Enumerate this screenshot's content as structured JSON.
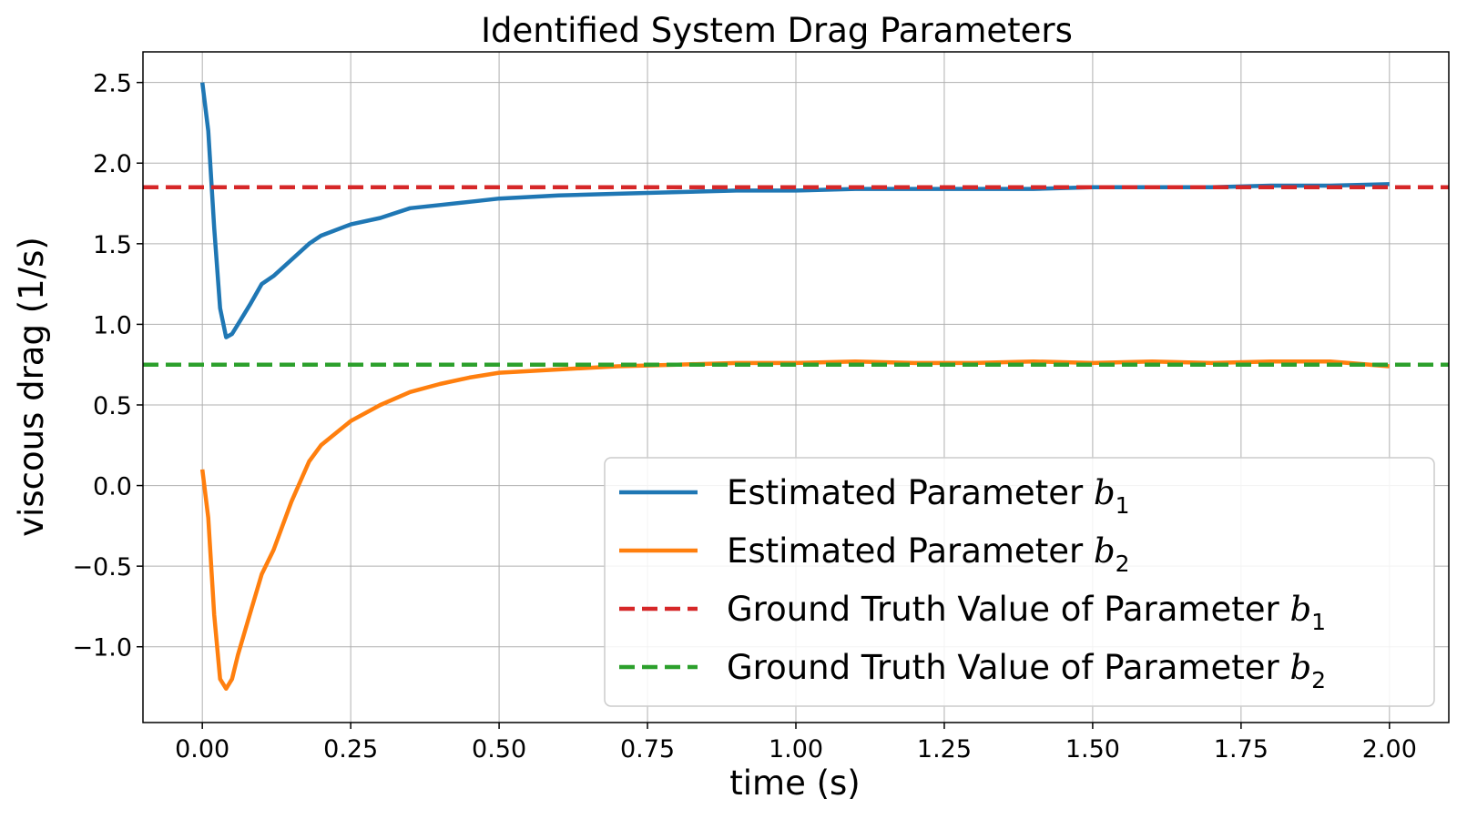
{
  "chart_data": {
    "type": "line",
    "title": "Identified System Drag Parameters",
    "xlabel": "time (s)",
    "ylabel": "viscous drag (1/s)",
    "xlim": [
      -0.1,
      2.1
    ],
    "ylim": [
      -1.47,
      2.69
    ],
    "xticks": [
      0.0,
      0.25,
      0.5,
      0.75,
      1.0,
      1.25,
      1.5,
      1.75,
      2.0
    ],
    "xtick_labels": [
      "0.00",
      "0.25",
      "0.50",
      "0.75",
      "1.00",
      "1.25",
      "1.50",
      "1.75",
      "2.00"
    ],
    "yticks": [
      -1.0,
      -0.5,
      0.0,
      0.5,
      1.0,
      1.5,
      2.0,
      2.5
    ],
    "ytick_labels": [
      "−1.0",
      "−0.5",
      "0.0",
      "0.5",
      "1.0",
      "1.5",
      "2.0",
      "2.5"
    ],
    "grid": true,
    "legend_position": "lower-right",
    "series": [
      {
        "name_prefix": "Estimated Parameter ",
        "name_symbol": "b",
        "name_subscript": "1",
        "color": "#1f77b4",
        "style": "solid",
        "x": [
          0.0,
          0.01,
          0.02,
          0.03,
          0.04,
          0.05,
          0.06,
          0.08,
          0.1,
          0.12,
          0.15,
          0.18,
          0.2,
          0.25,
          0.3,
          0.35,
          0.4,
          0.45,
          0.5,
          0.6,
          0.7,
          0.8,
          0.9,
          1.0,
          1.1,
          1.2,
          1.3,
          1.4,
          1.5,
          1.6,
          1.7,
          1.8,
          1.9,
          2.0
        ],
        "y": [
          2.5,
          2.2,
          1.6,
          1.1,
          0.92,
          0.94,
          1.0,
          1.12,
          1.25,
          1.3,
          1.4,
          1.5,
          1.55,
          1.62,
          1.66,
          1.72,
          1.74,
          1.76,
          1.78,
          1.8,
          1.81,
          1.82,
          1.83,
          1.83,
          1.84,
          1.84,
          1.84,
          1.84,
          1.85,
          1.85,
          1.85,
          1.86,
          1.86,
          1.87
        ]
      },
      {
        "name_prefix": "Estimated Parameter ",
        "name_symbol": "b",
        "name_subscript": "2",
        "color": "#ff7f0e",
        "style": "solid",
        "x": [
          0.0,
          0.01,
          0.02,
          0.03,
          0.04,
          0.05,
          0.06,
          0.08,
          0.1,
          0.12,
          0.15,
          0.18,
          0.2,
          0.25,
          0.3,
          0.35,
          0.4,
          0.45,
          0.5,
          0.6,
          0.7,
          0.8,
          0.9,
          1.0,
          1.1,
          1.2,
          1.3,
          1.4,
          1.5,
          1.6,
          1.7,
          1.8,
          1.9,
          2.0
        ],
        "y": [
          0.1,
          -0.2,
          -0.8,
          -1.2,
          -1.26,
          -1.2,
          -1.05,
          -0.8,
          -0.55,
          -0.4,
          -0.1,
          0.15,
          0.25,
          0.4,
          0.5,
          0.58,
          0.63,
          0.67,
          0.7,
          0.72,
          0.74,
          0.75,
          0.76,
          0.76,
          0.77,
          0.76,
          0.76,
          0.77,
          0.76,
          0.77,
          0.76,
          0.77,
          0.77,
          0.74
        ]
      },
      {
        "name_prefix": "Ground Truth Value of Parameter ",
        "name_symbol": "b",
        "name_subscript": "1",
        "color": "#d62728",
        "style": "dashed",
        "x": [
          -0.1,
          2.1
        ],
        "y": [
          1.85,
          1.85
        ]
      },
      {
        "name_prefix": "Ground Truth Value of Parameter ",
        "name_symbol": "b",
        "name_subscript": "2",
        "color": "#2ca02c",
        "style": "dashed",
        "x": [
          -0.1,
          2.1
        ],
        "y": [
          0.75,
          0.75
        ]
      }
    ]
  }
}
